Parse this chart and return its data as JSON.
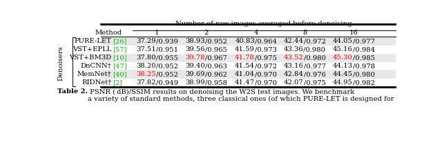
{
  "header_top": "Number of raw images averaged before denoising",
  "col_headers": [
    "Method",
    "1",
    "2",
    "4",
    "8",
    "16"
  ],
  "rotated_label": "Denoisers",
  "rows": [
    {
      "method": "PURE-LET",
      "cite": "[26]",
      "cite_color": "#00bb00",
      "values": [
        [
          [
            "37.29",
            "black"
          ],
          [
            "/0.939",
            "black"
          ]
        ],
        [
          [
            "38.93",
            "black"
          ],
          [
            "/0.952",
            "black"
          ]
        ],
        [
          [
            "40.83",
            "black"
          ],
          [
            "/0.964",
            "black"
          ]
        ],
        [
          [
            "42.44",
            "black"
          ],
          [
            "/0.972",
            "black"
          ]
        ],
        [
          [
            "44.05",
            "black"
          ],
          [
            "/0.977",
            "black"
          ]
        ]
      ],
      "shaded": true
    },
    {
      "method": "VST+EPLL",
      "cite": "[57]",
      "cite_color": "#00bb00",
      "values": [
        [
          [
            "37.51",
            "black"
          ],
          [
            "/0.951",
            "black"
          ]
        ],
        [
          [
            "39.56",
            "black"
          ],
          [
            "/0.965",
            "black"
          ]
        ],
        [
          [
            "41.59",
            "black"
          ],
          [
            "/0.973",
            "black"
          ]
        ],
        [
          [
            "43.36",
            "black"
          ],
          [
            "/0.980",
            "black"
          ]
        ],
        [
          [
            "45.16",
            "black"
          ],
          [
            "/0.984",
            "black"
          ]
        ]
      ],
      "shaded": false
    },
    {
      "method": "VST+BM3D",
      "cite": "[10]",
      "cite_color": "#00bb00",
      "values": [
        [
          [
            "37.80",
            "black"
          ],
          [
            "/0.955",
            "black"
          ]
        ],
        [
          [
            "39.78",
            "red"
          ],
          [
            "/0.967",
            "black"
          ]
        ],
        [
          [
            "41.78",
            "red"
          ],
          [
            "/0.975",
            "black"
          ]
        ],
        [
          [
            "43.52",
            "red"
          ],
          [
            "/0.980",
            "black"
          ]
        ],
        [
          [
            "45.30",
            "red"
          ],
          [
            "/0.985",
            "black"
          ]
        ]
      ],
      "shaded": true
    },
    {
      "method": "DnCNN†",
      "cite": "[47]",
      "cite_color": "#00bb00",
      "values": [
        [
          [
            "38.20",
            "black"
          ],
          [
            "/0.952",
            "black"
          ]
        ],
        [
          [
            "39.40",
            "black"
          ],
          [
            "/0.963",
            "black"
          ]
        ],
        [
          [
            "41.54",
            "black"
          ],
          [
            "/0.972",
            "black"
          ]
        ],
        [
          [
            "43.16",
            "black"
          ],
          [
            "/0.977",
            "black"
          ]
        ],
        [
          [
            "44.13",
            "black"
          ],
          [
            "/0.978",
            "black"
          ]
        ]
      ],
      "shaded": false
    },
    {
      "method": "MemNet†",
      "cite": "[40]",
      "cite_color": "#00bb00",
      "values": [
        [
          [
            "38.25",
            "red"
          ],
          [
            "/0.952",
            "black"
          ]
        ],
        [
          [
            "39.69",
            "black"
          ],
          [
            "/0.962",
            "black"
          ]
        ],
        [
          [
            "41.04",
            "black"
          ],
          [
            "/0.970",
            "black"
          ]
        ],
        [
          [
            "42.84",
            "black"
          ],
          [
            "/0.976",
            "black"
          ]
        ],
        [
          [
            "44.45",
            "black"
          ],
          [
            "/0.980",
            "black"
          ]
        ]
      ],
      "shaded": true
    },
    {
      "method": "RIDNet†",
      "cite": "[2]",
      "cite_color": "#00bb00",
      "values": [
        [
          [
            "37.82",
            "black"
          ],
          [
            "/0.949",
            "black"
          ]
        ],
        [
          [
            "38.99",
            "black"
          ],
          [
            "/0.958",
            "black"
          ]
        ],
        [
          [
            "41.47",
            "black"
          ],
          [
            "/0.970",
            "black"
          ]
        ],
        [
          [
            "42.07",
            "black"
          ],
          [
            "/0.975",
            "black"
          ]
        ],
        [
          [
            "44.95",
            "black"
          ],
          [
            "/0.982",
            "black"
          ]
        ]
      ],
      "shaded": false
    }
  ],
  "caption_bold": "Table 2.",
  "caption_rest": " PSNR ( dB)/SSIM results on denoising the W2S test images. We benchmark\na variety of standard methods, three classical ones (of which PURE-LET is designed for",
  "shaded_color": "#e8e8e8",
  "fontsize": 7.2,
  "caption_fontsize": 7.2
}
